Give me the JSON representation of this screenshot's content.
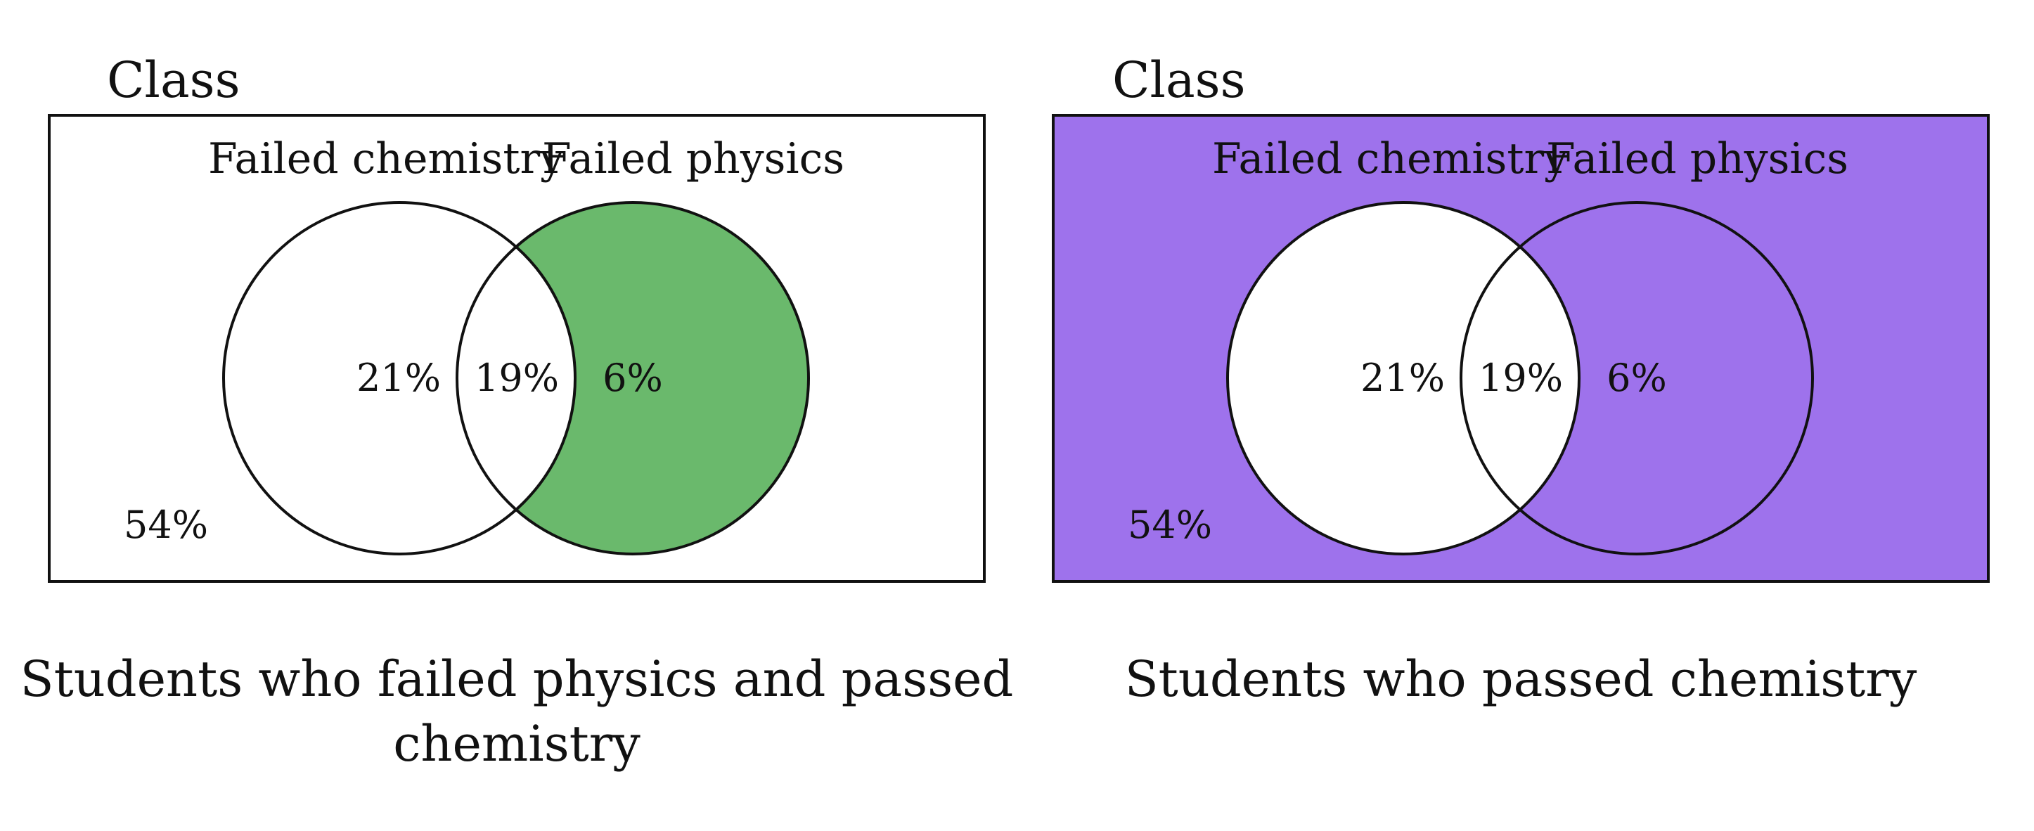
{
  "colors": {
    "highlight_green": "#6ab96c",
    "highlight_purple": "#9e72ec",
    "background": "#ffffff",
    "stroke": "#111111"
  },
  "panels": [
    {
      "frame_label": "Class",
      "set_a_label": "Failed chemistry",
      "set_b_label": "Failed physics",
      "region_only_a": "21%",
      "region_both": "19%",
      "region_only_b": "6%",
      "region_neither": "54%",
      "caption_line1": "Students who failed physics and passed",
      "caption_line2": "chemistry",
      "shaded_regions": [
        "only_b"
      ],
      "shade_color": "#6ab96c"
    },
    {
      "frame_label": "Class",
      "set_a_label": "Failed chemistry",
      "set_b_label": "Failed physics",
      "region_only_a": "21%",
      "region_both": "19%",
      "region_only_b": "6%",
      "region_neither": "54%",
      "caption_line1": "Students who passed chemistry",
      "caption_line2": "",
      "shaded_regions": [
        "only_b",
        "neither"
      ],
      "shade_color": "#9e72ec"
    }
  ]
}
